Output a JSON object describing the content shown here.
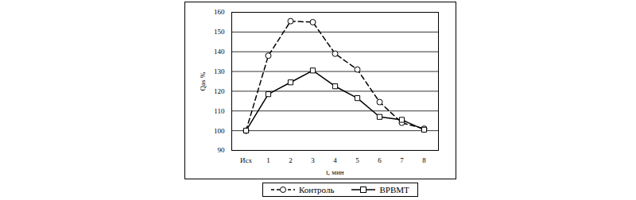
{
  "chart_data": {
    "type": "line",
    "x_label": "t, мин",
    "y_label": "Qas %",
    "categories": [
      "Исх",
      "1",
      "2",
      "3",
      "4",
      "5",
      "6",
      "7",
      "8"
    ],
    "series": [
      {
        "name": "Контроль",
        "color": "#000000",
        "marker": "circle",
        "line_style": "dashed",
        "values": [
          100,
          138,
          155.5,
          155,
          139,
          131,
          114.5,
          104,
          101
        ]
      },
      {
        "name": "ВРВМТ",
        "color": "#000000",
        "marker": "square",
        "line_style": "solid",
        "values": [
          100,
          118.5,
          124.5,
          130.5,
          122.5,
          116.5,
          107,
          105.5,
          100.5
        ]
      }
    ],
    "ylim": [
      90,
      160
    ],
    "yticks": [
      90,
      100,
      110,
      120,
      130,
      140,
      150,
      160
    ],
    "grid": true,
    "legend": "bottom"
  }
}
